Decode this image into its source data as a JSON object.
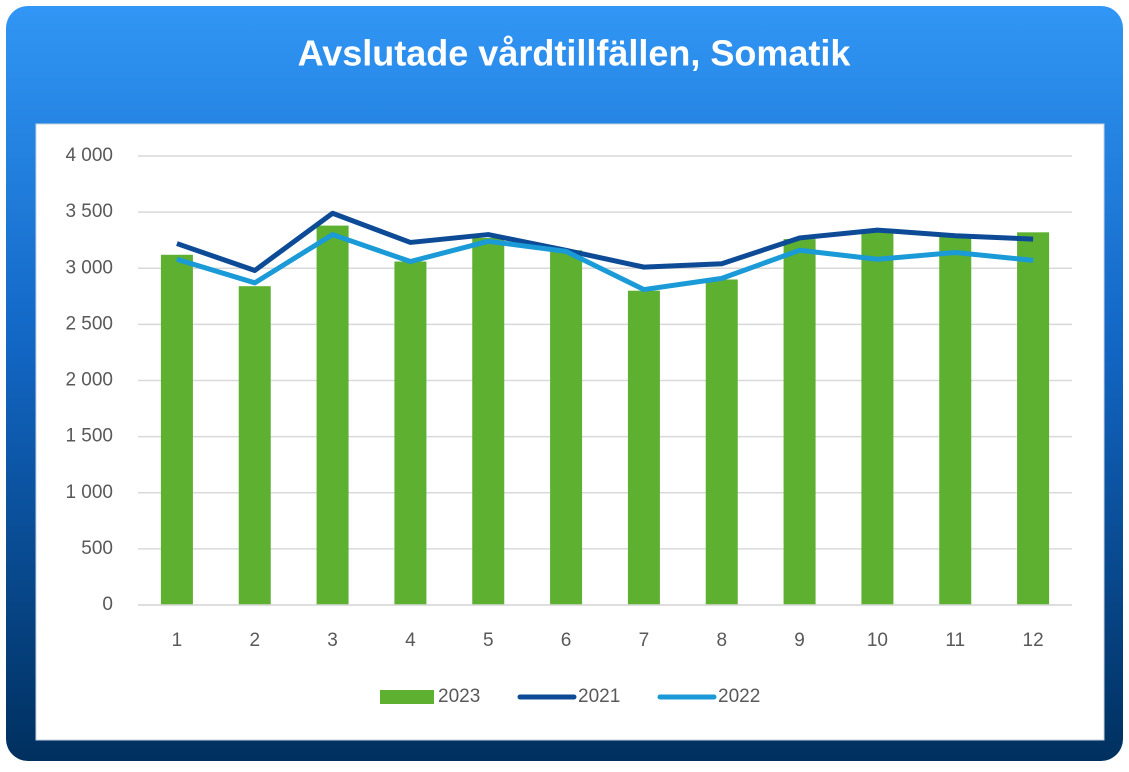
{
  "chart_data": {
    "type": "bar",
    "title": "Avslutade vårdtillfällen, Somatik",
    "categories": [
      "1",
      "2",
      "3",
      "4",
      "5",
      "6",
      "7",
      "8",
      "9",
      "10",
      "11",
      "12"
    ],
    "series": [
      {
        "name": "2023",
        "type": "bar",
        "color": "#5db030",
        "values": [
          3120,
          2840,
          3380,
          3060,
          3270,
          3160,
          2800,
          2900,
          3260,
          3320,
          3280,
          3320
        ]
      },
      {
        "name": "2021",
        "type": "line",
        "color": "#0d4b96",
        "values": [
          3220,
          2980,
          3490,
          3230,
          3300,
          3160,
          3010,
          3040,
          3270,
          3340,
          3290,
          3260
        ]
      },
      {
        "name": "2022",
        "type": "line",
        "color": "#1a9ad6",
        "values": [
          3080,
          2870,
          3300,
          3060,
          3240,
          3150,
          2810,
          2910,
          3160,
          3080,
          3140,
          3070
        ]
      }
    ],
    "ylim": [
      0,
      4000
    ],
    "yticks": [
      0,
      500,
      {
        "value": 1000,
        "label": "1 000"
      },
      {
        "value": 1500,
        "label": "1 500"
      },
      {
        "value": 2000,
        "label": "2 000"
      },
      {
        "value": 2500,
        "label": "2 500"
      },
      {
        "value": 3000,
        "label": "3 000"
      },
      {
        "value": 3500,
        "label": "3 500"
      },
      {
        "value": 4000,
        "label": "4 000"
      }
    ],
    "grid": true,
    "legend": "bottom"
  }
}
